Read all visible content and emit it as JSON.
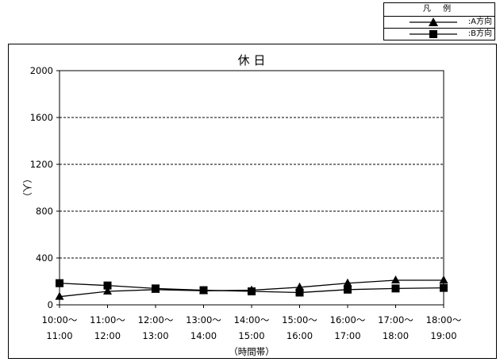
{
  "legend": {
    "title": "凡 例",
    "items": [
      {
        "marker": "triangle",
        "label": ":A方向"
      },
      {
        "marker": "square",
        "label": ":B方向"
      }
    ]
  },
  "chart_data": {
    "type": "line",
    "title": "休 日",
    "xlabel": "（時間帯）",
    "ylabel": "（人）",
    "ylim": [
      0,
      2000
    ],
    "yticks": [
      0,
      400,
      800,
      1200,
      1600,
      2000
    ],
    "grid": "dashed horizontal",
    "categories": [
      [
        "10:00～",
        "11:00"
      ],
      [
        "11:00～",
        "12:00"
      ],
      [
        "12:00～",
        "13:00"
      ],
      [
        "13:00～",
        "14:00"
      ],
      [
        "14:00～",
        "15:00"
      ],
      [
        "15:00～",
        "16:00"
      ],
      [
        "16:00～",
        "17:00"
      ],
      [
        "17:00～",
        "18:00"
      ],
      [
        "18:00～",
        "19:00"
      ]
    ],
    "series": [
      {
        "name": ":A方向",
        "marker": "triangle",
        "values": [
          70,
          115,
          130,
          120,
          125,
          150,
          185,
          210,
          210
        ]
      },
      {
        "name": ":B方向",
        "marker": "square",
        "values": [
          185,
          165,
          140,
          125,
          115,
          105,
          130,
          140,
          145
        ]
      }
    ]
  }
}
